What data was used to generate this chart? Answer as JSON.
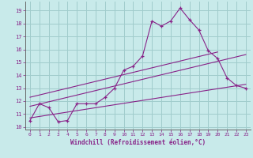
{
  "title": "",
  "xlabel": "Windchill (Refroidissement éolien,°C)",
  "bg_color": "#c8eaea",
  "grid_color": "#a0cccc",
  "line_color": "#882288",
  "xlim": [
    -0.5,
    23.5
  ],
  "ylim": [
    9.8,
    19.7
  ],
  "yticks": [
    10,
    11,
    12,
    13,
    14,
    15,
    16,
    17,
    18,
    19
  ],
  "xticks": [
    0,
    1,
    2,
    3,
    4,
    5,
    6,
    7,
    8,
    9,
    10,
    11,
    12,
    13,
    14,
    15,
    16,
    17,
    18,
    19,
    20,
    21,
    22,
    23
  ],
  "main_x": [
    0,
    1,
    2,
    3,
    4,
    5,
    6,
    7,
    8,
    9,
    10,
    11,
    12,
    13,
    14,
    15,
    16,
    17,
    18,
    19,
    20,
    21,
    22,
    23
  ],
  "main_y": [
    10.5,
    11.8,
    11.5,
    10.4,
    10.5,
    11.8,
    11.8,
    11.8,
    12.3,
    13.0,
    14.4,
    14.7,
    15.5,
    18.2,
    17.8,
    18.2,
    19.2,
    18.3,
    17.5,
    15.9,
    15.3,
    13.8,
    13.2,
    13.0
  ],
  "line2_x": [
    0,
    23
  ],
  "line2_y": [
    11.6,
    15.6
  ],
  "line3_x": [
    0,
    23
  ],
  "line3_y": [
    10.7,
    13.3
  ],
  "line4_x": [
    0,
    20
  ],
  "line4_y": [
    12.3,
    15.8
  ]
}
